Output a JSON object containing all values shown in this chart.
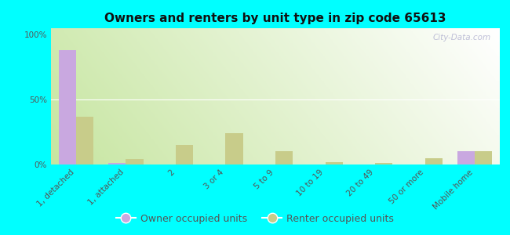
{
  "title": "Owners and renters by unit type in zip code 65613",
  "categories": [
    "1, detached",
    "1, attached",
    "2",
    "3 or 4",
    "5 to 9",
    "10 to 19",
    "20 to 49",
    "50 or more",
    "Mobile home"
  ],
  "owner_values": [
    88,
    1,
    0,
    0,
    0,
    0,
    0,
    0,
    10
  ],
  "renter_values": [
    37,
    4,
    15,
    24,
    10,
    2,
    1,
    5,
    10
  ],
  "owner_color": "#c9a8e0",
  "renter_color": "#c8cc8a",
  "bg_gradient_bottom_left": "#c8e6a0",
  "bg_gradient_top_right": "#f0f8e8",
  "outer_background": "#00ffff",
  "ylim": [
    0,
    105
  ],
  "yticks": [
    0,
    50,
    100
  ],
  "ytick_labels": [
    "0%",
    "50%",
    "100%"
  ],
  "bar_width": 0.35,
  "watermark": "City-Data.com",
  "legend_owner": "Owner occupied units",
  "legend_renter": "Renter occupied units",
  "title_fontsize": 11,
  "tick_fontsize": 7.5,
  "legend_fontsize": 9
}
